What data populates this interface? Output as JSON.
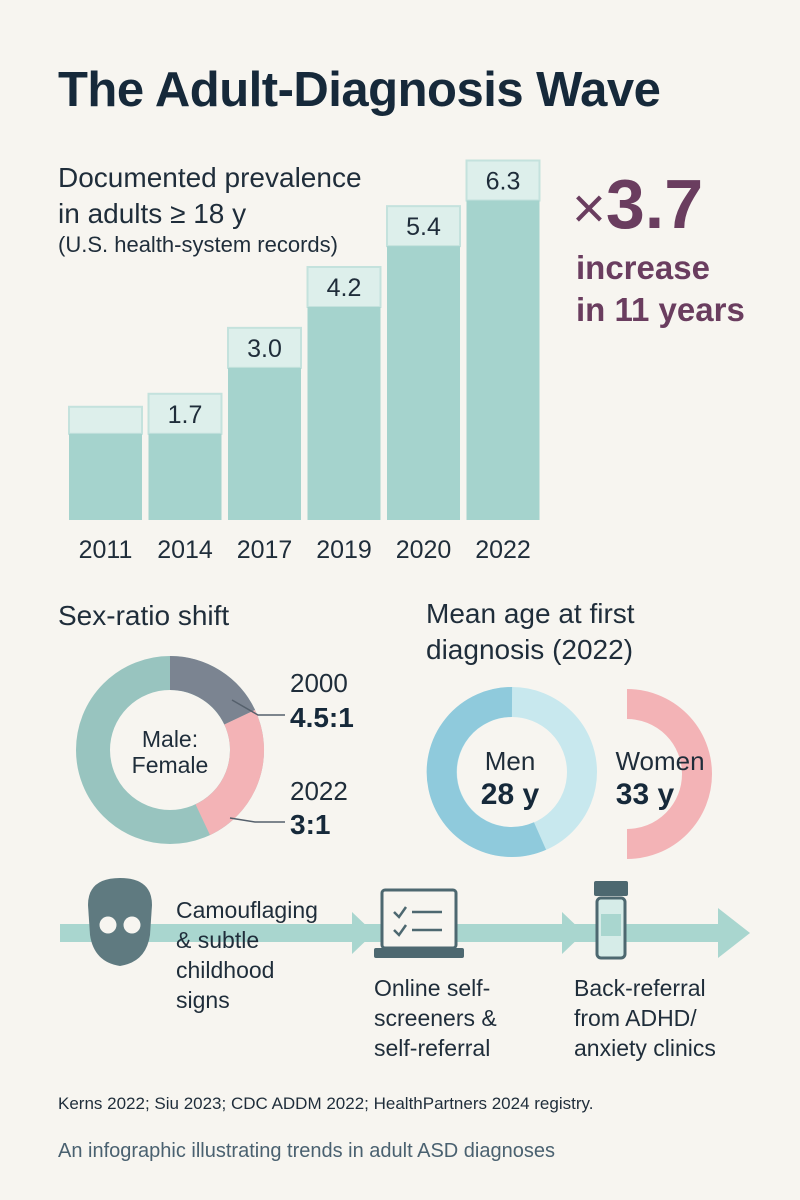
{
  "title": "The Adult-Diagnosis Wave",
  "chart_data": {
    "type": "bar",
    "heading": "Documented prevalence\nin adults ≥ 18 y",
    "subheading": "(U.S. health-system records)",
    "categories": [
      "2011",
      "2014",
      "2017",
      "2019",
      "2020",
      "2022"
    ],
    "values": [
      1.7,
      1.7,
      3.0,
      4.2,
      5.4,
      6.3
    ],
    "data_labels": [
      "",
      "1.7",
      "3.0",
      "4.2",
      "5.4",
      "6.3"
    ],
    "ylim": [
      0,
      7
    ],
    "colors": {
      "bar": "#a5d3cd",
      "cap": "#ddefeb",
      "border": "#c4e2dd"
    }
  },
  "callout": {
    "multiplier_symbol": "×",
    "multiplier_value": "3.7",
    "line1": "increase",
    "line2": "in 11 years",
    "color": "#6a3d5f"
  },
  "sex_ratio": {
    "heading": "Sex-ratio shift",
    "center_line1": "Male:",
    "center_line2": "Female",
    "entries": [
      {
        "year": "2000",
        "ratio": "4.5:1",
        "female_share": 0.18
      },
      {
        "year": "2022",
        "ratio": "3:1",
        "female_share": 0.25
      }
    ],
    "colors": {
      "male": "#98c4bf",
      "segment_2000": "#7b8491",
      "segment_2022": "#f3b3b6"
    }
  },
  "age": {
    "heading_line1": "Mean age at first",
    "heading_line2": "diagnosis (2022)",
    "men": {
      "label": "Men",
      "value": "28 y",
      "color": "#8fcadc",
      "light": "#c8e8ee"
    },
    "women": {
      "label": "Women",
      "value": "33 y",
      "color": "#f3b3b6"
    }
  },
  "timeline": {
    "items": [
      {
        "icon": "mask-icon",
        "lines": [
          "Camouflaging",
          "& subtle",
          "childhood",
          "signs"
        ]
      },
      {
        "icon": "laptop-checklist-icon",
        "lines": [
          "Online self-",
          "screeners &",
          "self-referral"
        ]
      },
      {
        "icon": "pill-bottle-icon",
        "lines": [
          "Back-referral",
          "from ADHD/",
          "anxiety clinics"
        ]
      }
    ],
    "arrow_color": "#a9d6cf"
  },
  "sources": "Kerns 2022; Siu 2023; CDC ADDM 2022; HealthPartners 2024 registry.",
  "caption": "An infographic illustrating trends in adult ASD diagnoses"
}
